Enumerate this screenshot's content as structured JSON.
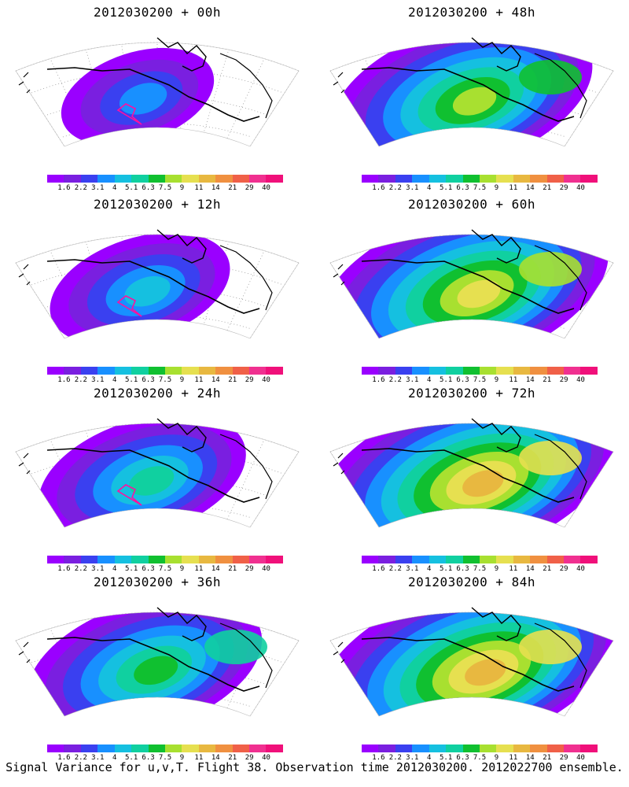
{
  "panels": [
    {
      "title": "2012030200 + 00h",
      "lead": 0
    },
    {
      "title": "2012030200 + 48h",
      "lead": 48
    },
    {
      "title": "2012030200 + 12h",
      "lead": 12
    },
    {
      "title": "2012030200 + 60h",
      "lead": 60
    },
    {
      "title": "2012030200 + 24h",
      "lead": 24
    },
    {
      "title": "2012030200 + 72h",
      "lead": 72
    },
    {
      "title": "2012030200 + 36h",
      "lead": 36
    },
    {
      "title": "2012030200 + 84h",
      "lead": 84
    }
  ],
  "colorbar": {
    "labels": [
      "1.6",
      "2.2",
      "3.1",
      "4",
      "5.1",
      "6.3",
      "7.5",
      "9",
      "11",
      "14",
      "21",
      "29",
      "40"
    ],
    "colors": [
      "#9a00ff",
      "#7a1fe0",
      "#3a40f0",
      "#1890ff",
      "#15c0e0",
      "#10d0a0",
      "#10c030",
      "#a8e030",
      "#e6e050",
      "#e8b840",
      "#f09040",
      "#f06048",
      "#f03090",
      "#f0107a"
    ]
  },
  "caption": "Signal Variance for u,v,T. Flight 38. Observation time 2012030200. 2012022700 ensemble."
}
